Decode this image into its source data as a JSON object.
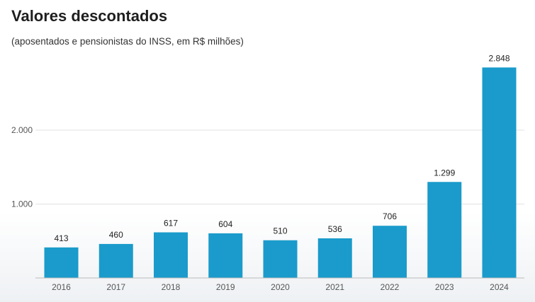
{
  "header": {
    "title": "Valores descontados",
    "subtitle": "(aposentados e pensionistas do INSS, em R$ milhões)"
  },
  "colors": {
    "bar": "#1a9bcb",
    "grid": "#e2e2e2",
    "axis": "#bbbbbb"
  },
  "chart_data": {
    "type": "bar",
    "title": "Valores descontados",
    "subtitle": "(aposentados e pensionistas do INSS, em R$ milhões)",
    "categories": [
      "2016",
      "2017",
      "2018",
      "2019",
      "2020",
      "2021",
      "2022",
      "2023",
      "2024"
    ],
    "values": [
      413,
      460,
      617,
      604,
      510,
      536,
      706,
      1299,
      2848
    ],
    "value_labels": [
      "413",
      "460",
      "617",
      "604",
      "510",
      "536",
      "706",
      "1.299",
      "2.848"
    ],
    "yticks": [
      1000,
      2000
    ],
    "ytick_labels": [
      "1.000",
      "2.000"
    ],
    "ylim": [
      0,
      3000
    ],
    "xlabel": "",
    "ylabel": "",
    "grid": true,
    "legend": "none"
  }
}
